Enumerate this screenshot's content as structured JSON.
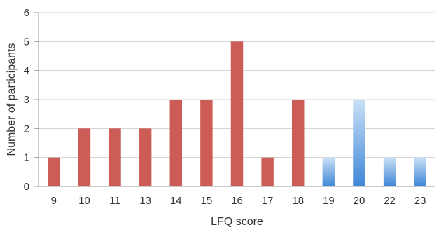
{
  "chart_data": {
    "type": "bar",
    "title": "",
    "xlabel": "LFQ score",
    "ylabel": "Number of participants",
    "categories": [
      "9",
      "10",
      "11",
      "13",
      "14",
      "15",
      "16",
      "17",
      "18",
      "19",
      "20",
      "22",
      "23"
    ],
    "values": [
      1,
      2,
      2,
      2,
      3,
      3,
      5,
      1,
      3,
      1,
      3,
      1,
      1
    ],
    "bar_color_groups": [
      "red",
      "red",
      "red",
      "red",
      "red",
      "red",
      "red",
      "red",
      "red",
      "blue",
      "blue",
      "blue",
      "blue"
    ],
    "ylim": [
      0,
      6
    ],
    "yticks": [
      0,
      1,
      2,
      3,
      4,
      5,
      6
    ],
    "grid": true,
    "legend": "none"
  },
  "colors": {
    "red_bar": "#cd5c57",
    "blue_bar_top": "#c9e0f7",
    "blue_bar_bottom": "#3f86d6",
    "gridline": "#cfcfcf",
    "axis": "#9a9a9a"
  }
}
